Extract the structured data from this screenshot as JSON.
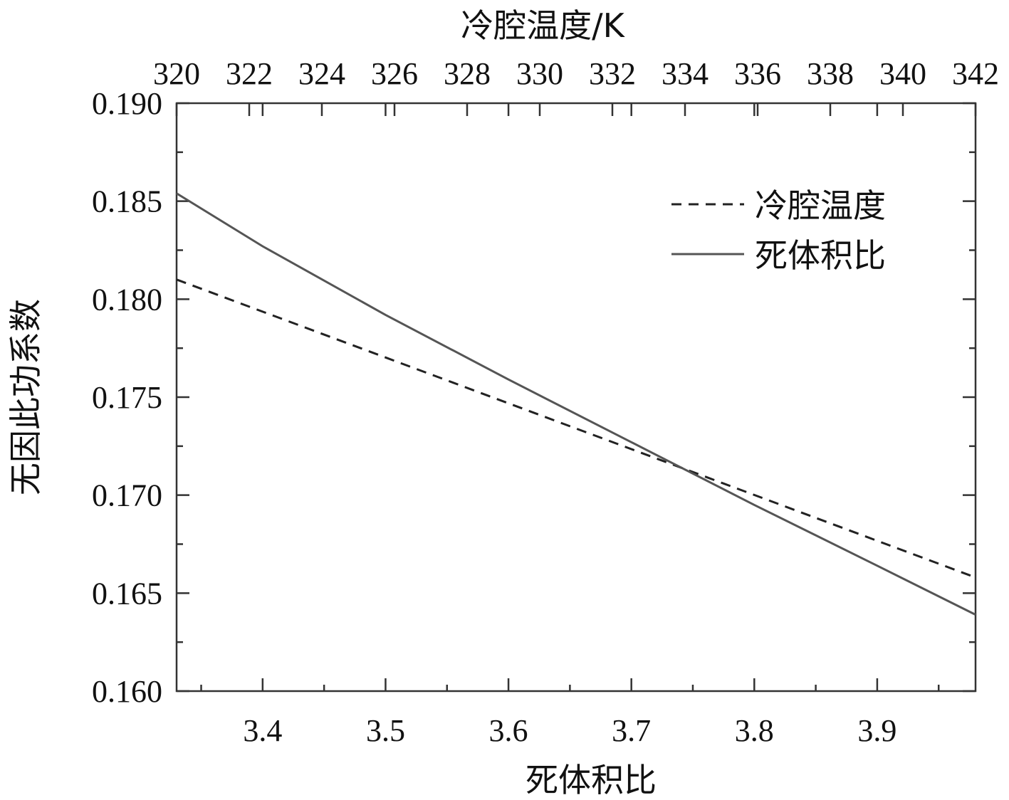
{
  "chart_data": {
    "type": "line",
    "title": "",
    "xlabel": "死体积比",
    "x2label": "冷腔温度/K",
    "ylabel": "无因此功系数",
    "xlim": [
      3.33,
      3.98
    ],
    "x2lim": [
      320,
      342
    ],
    "ylim": [
      0.16,
      0.19
    ],
    "x_ticks": [
      3.4,
      3.5,
      3.6,
      3.7,
      3.8,
      3.9
    ],
    "x_tick_labels": [
      "3.4",
      "3.5",
      "3.6",
      "3.7",
      "3.8",
      "3.9"
    ],
    "x2_ticks": [
      320,
      322,
      324,
      326,
      328,
      330,
      332,
      334,
      336,
      338,
      340,
      342
    ],
    "x2_tick_labels": [
      "320",
      "322",
      "324",
      "326",
      "328",
      "330",
      "332",
      "334",
      "336",
      "338",
      "340",
      "342"
    ],
    "y_ticks": [
      0.16,
      0.165,
      0.17,
      0.175,
      0.18,
      0.185,
      0.19
    ],
    "y_tick_labels": [
      "0.160",
      "0.165",
      "0.170",
      "0.175",
      "0.180",
      "0.185",
      "0.190"
    ],
    "grid": false,
    "legend_position": "top-right",
    "series": [
      {
        "name": "冷腔温度",
        "axis": "x2",
        "style": "dashed",
        "color": "#222222",
        "x": [
          320,
          342
        ],
        "y": [
          0.181,
          0.1658
        ]
      },
      {
        "name": "死体积比",
        "axis": "x",
        "style": "solid",
        "color": "#555555",
        "x": [
          3.33,
          3.4,
          3.5,
          3.6,
          3.7,
          3.8,
          3.9,
          3.98
        ],
        "y": [
          0.1854,
          0.1827,
          0.1792,
          0.1759,
          0.1727,
          0.1695,
          0.1664,
          0.1639
        ]
      }
    ]
  }
}
